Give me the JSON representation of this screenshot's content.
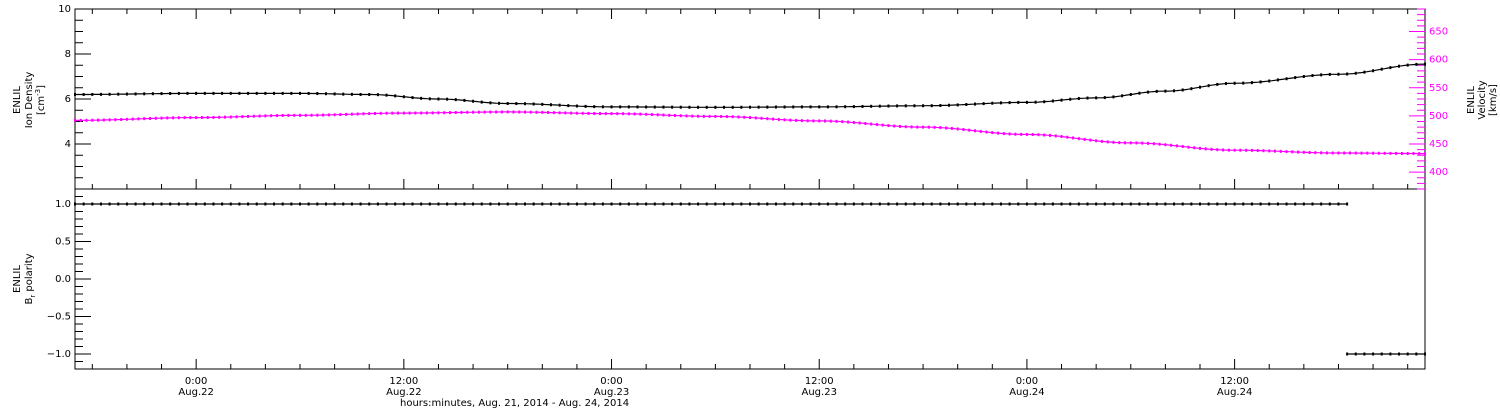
{
  "colors": {
    "frame": "#000000",
    "density": "#000000",
    "velocity": "#ff00ff",
    "polarity": "#000000",
    "background": "#ffffff"
  },
  "x_axis": {
    "time_range": [
      "2014-08-21 17:00",
      "2014-08-24 23:00"
    ],
    "major_ticks": [
      {
        "time": "2014-08-22 00:00",
        "line1": "0:00",
        "line2": "Aug.22"
      },
      {
        "time": "2014-08-22 12:00",
        "line1": "12:00",
        "line2": "Aug.22"
      },
      {
        "time": "2014-08-23 00:00",
        "line1": "0:00",
        "line2": "Aug.23"
      },
      {
        "time": "2014-08-23 12:00",
        "line1": "12:00",
        "line2": "Aug.23"
      },
      {
        "time": "2014-08-24 00:00",
        "line1": "0:00",
        "line2": "Aug.24"
      },
      {
        "time": "2014-08-24 12:00",
        "line1": "12:00",
        "line2": "Aug.24"
      }
    ],
    "minor_tick_hours": 2,
    "title": "hours:minutes, Aug. 21, 2014 - Aug. 24, 2014"
  },
  "chart_data": [
    {
      "type": "line",
      "panel": "top",
      "y_left": {
        "label_line1": "ENLIL",
        "label_line2": "Ion Density",
        "label_line3": "[cm",
        "label_sup": "-3",
        "label_end": "]",
        "ylim": [
          2,
          10
        ],
        "ticks": [
          "4",
          "6",
          "8",
          "10"
        ]
      },
      "y_right": {
        "label_line1": "ENLIL",
        "label_line2": "Velocity",
        "label_line3": "[km/s]",
        "ylim": [
          370,
          690
        ],
        "ticks": [
          "400",
          "450",
          "500",
          "550",
          "600",
          "650"
        ]
      },
      "series": [
        {
          "axis": "left",
          "x": [
            "2014-08-21 17:00",
            "2014-08-22 00:00",
            "2014-08-22 06:00",
            "2014-08-22 10:00",
            "2014-08-22 14:00",
            "2014-08-22 18:00",
            "2014-08-23 00:00",
            "2014-08-23 06:00",
            "2014-08-23 12:00",
            "2014-08-23 18:00",
            "2014-08-24 00:00",
            "2014-08-24 04:00",
            "2014-08-24 08:00",
            "2014-08-24 12:00",
            "2014-08-24 18:00",
            "2014-08-24 23:00"
          ],
          "y": [
            6.2,
            6.25,
            6.25,
            6.2,
            6.0,
            5.8,
            5.65,
            5.63,
            5.65,
            5.7,
            5.85,
            6.05,
            6.35,
            6.7,
            7.1,
            7.55
          ]
        },
        {
          "axis": "right",
          "x": [
            "2014-08-21 17:00",
            "2014-08-22 00:00",
            "2014-08-22 06:00",
            "2014-08-22 12:00",
            "2014-08-22 18:00",
            "2014-08-23 00:00",
            "2014-08-23 06:00",
            "2014-08-23 12:00",
            "2014-08-23 18:00",
            "2014-08-24 00:00",
            "2014-08-24 06:00",
            "2014-08-24 12:00",
            "2014-08-24 18:00",
            "2014-08-24 23:00"
          ],
          "y": [
            492,
            497,
            501,
            505,
            507,
            504,
            499,
            491,
            480,
            467,
            452,
            439,
            434,
            433
          ]
        }
      ]
    },
    {
      "type": "line",
      "panel": "bottom",
      "y_left": {
        "label_line1": "ENLIL",
        "label_line2": "B",
        "label_sub": "r",
        "label_end": " polarity",
        "ylim": [
          -1.2,
          1.2
        ],
        "ticks": [
          "-1.0",
          "-0.5",
          "0.0",
          "0.5",
          "1.0"
        ]
      },
      "series": [
        {
          "x": [
            "2014-08-21 17:00",
            "2014-08-24 18:30"
          ],
          "y": [
            1.0,
            1.0
          ]
        },
        {
          "x": [
            "2014-08-24 18:30",
            "2014-08-24 23:00"
          ],
          "y": [
            -1.0,
            -1.0
          ]
        }
      ]
    }
  ]
}
